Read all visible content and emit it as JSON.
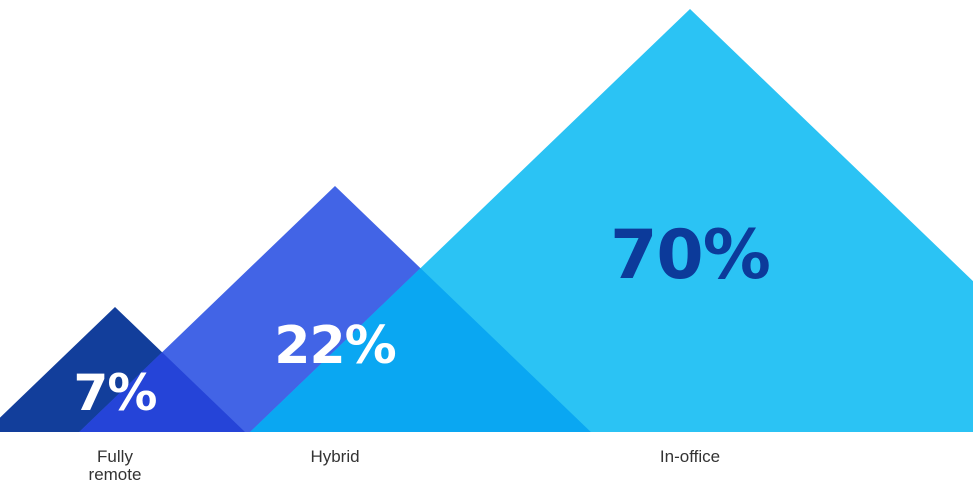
{
  "chart_data": {
    "type": "area",
    "shape": "triangle",
    "categories": [
      "Fully remote",
      "Hybrid",
      "In-office"
    ],
    "category_label_lines": [
      [
        "Fully",
        "remote"
      ],
      [
        "Hybrid"
      ],
      [
        "In-office"
      ]
    ],
    "values": [
      7,
      22,
      70
    ],
    "data_labels": [
      "7%",
      "22%",
      "70%"
    ],
    "colors": [
      "#123e9b",
      "#4264e6",
      "#2bc3f4"
    ],
    "label_colors": [
      "#ffffff",
      "#ffffff",
      "#0c3a9a"
    ],
    "overlap_colors": [
      "#2544d8",
      "#0aa7f2"
    ],
    "title": "",
    "legend": "none",
    "grid": false
  }
}
